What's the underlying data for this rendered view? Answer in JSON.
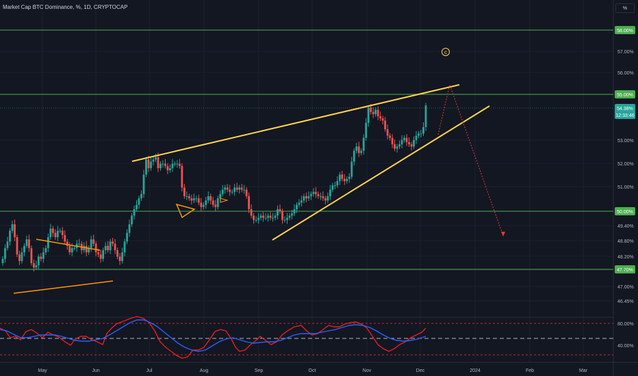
{
  "header": {
    "title": "Market Cap BTC Dominance, %, 1D, CRYPTOCAP",
    "scale_button": "%"
  },
  "annotation": {
    "wave_label": "c"
  },
  "colors": {
    "background": "#131722",
    "up": "#26a69a",
    "down": "#ef5350",
    "wedge": "#ffd54f",
    "triangle": "#ff9800",
    "hline": "#4caf50",
    "rsi": "#e91e1e",
    "rsi_ma": "#2962ff",
    "label_bg": "#4caf50",
    "price_label_bg": "#26a69a",
    "arrow": "#e53935"
  },
  "price_axis": {
    "ticks": [
      "57.00%",
      "56.00%",
      "53.00%",
      "52.00%",
      "51.00%",
      "49.40%",
      "48.80%",
      "48.20%",
      "47.00%",
      "46.45%"
    ]
  },
  "hlines": [
    "58.00%",
    "55.00%",
    "50.00%",
    "47.70%"
  ],
  "last_price": {
    "value": "54.38%",
    "countdown": "12:33:46"
  },
  "rsi_axis": {
    "ticks": [
      "80.00%",
      "40.00%"
    ]
  },
  "time_axis": {
    "labels": [
      "May",
      "Jun",
      "Jul",
      "Aug",
      "Sep",
      "Oct",
      "Nov",
      "Dec",
      "2024",
      "Feb",
      "Mar"
    ]
  },
  "chart_data": {
    "type": "candlestick",
    "title": "Market Cap BTC Dominance, %, 1D, CRYPTOCAP",
    "ylabel": "%",
    "ylim": [
      45.9,
      59.0
    ],
    "months": [
      "May",
      "Jun",
      "Jul",
      "Aug",
      "Sep",
      "Oct",
      "Nov",
      "Dec",
      "2024",
      "Feb",
      "Mar"
    ],
    "closes": [
      47.3,
      47.8,
      48.1,
      48.6,
      48.9,
      48.3,
      47.5,
      47.2,
      47.6,
      47.9,
      48.2,
      47.8,
      47.1,
      46.9,
      47.0,
      47.4,
      47.3,
      47.6,
      47.8,
      48.3,
      48.7,
      48.5,
      48.3,
      48.6,
      48.6,
      48.4,
      48.1,
      47.9,
      47.6,
      47.8,
      47.8,
      48.0,
      48.0,
      47.7,
      47.9,
      47.6,
      47.8,
      48.2,
      48.0,
      47.6,
      47.5,
      47.3,
      47.7,
      47.9,
      47.7,
      48.1,
      48.0,
      47.7,
      47.4,
      47.2,
      47.6,
      48.1,
      48.5,
      48.9,
      49.3,
      49.6,
      49.8,
      50.1,
      50.3,
      51.2,
      51.9,
      51.5,
      51.8,
      51.9,
      52.0,
      51.5,
      51.7,
      51.7,
      51.6,
      51.4,
      51.5,
      51.7,
      51.7,
      51.7,
      51.6,
      50.6,
      50.2,
      50.2,
      50.1,
      50.0,
      50.1,
      50.1,
      49.9,
      49.7,
      49.8,
      50.0,
      50.2,
      50.0,
      49.8,
      49.7,
      50.1,
      50.3,
      50.5,
      50.6,
      50.5,
      50.4,
      50.4,
      50.6,
      50.5,
      50.6,
      50.5,
      50.5,
      50.2,
      49.6,
      49.3,
      49.1,
      49.1,
      49.2,
      49.3,
      49.2,
      49.2,
      49.3,
      49.2,
      49.2,
      49.3,
      49.6,
      49.5,
      49.1,
      49.1,
      49.2,
      49.3,
      49.4,
      49.6,
      49.8,
      49.9,
      50.0,
      50.2,
      50.1,
      50.2,
      50.3,
      50.4,
      50.3,
      50.2,
      50.2,
      50.1,
      50.0,
      50.2,
      50.5,
      50.7,
      50.7,
      50.9,
      51.2,
      51.0,
      50.9,
      51.0,
      51.1,
      51.8,
      52.3,
      52.5,
      52.2,
      52.3,
      52.9,
      53.6,
      54.3,
      54.1,
      54.0,
      54.2,
      53.9,
      53.8,
      53.7,
      53.3,
      53.0,
      52.9,
      52.6,
      52.4,
      52.5,
      52.6,
      52.8,
      52.9,
      52.7,
      52.6,
      52.5,
      52.8,
      53.0,
      53.1,
      53.1,
      53.4,
      54.4
    ]
  }
}
